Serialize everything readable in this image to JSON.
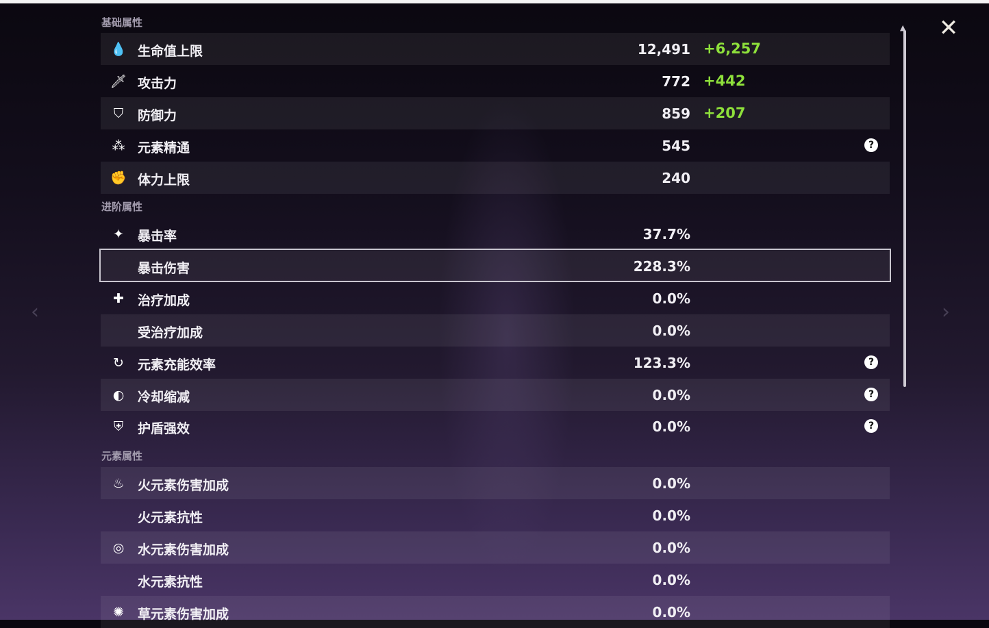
{
  "close_label": "✕",
  "sections": [
    {
      "title": "基础属性",
      "rows": [
        {
          "icon": "hp-drop-icon",
          "glyph": "💧",
          "label": "生命值上限",
          "value": "12,491",
          "bonus": "+6,257",
          "help": false
        },
        {
          "icon": "sword-icon",
          "glyph": "🗡",
          "label": "攻击力",
          "value": "772",
          "bonus": "+442",
          "help": false
        },
        {
          "icon": "shield-icon",
          "glyph": "⛉",
          "label": "防御力",
          "value": "859",
          "bonus": "+207",
          "help": false
        },
        {
          "icon": "elemental-mastery-icon",
          "glyph": "⁂",
          "label": "元素精通",
          "value": "545",
          "bonus": "",
          "help": true
        },
        {
          "icon": "stamina-icon",
          "glyph": "✊",
          "label": "体力上限",
          "value": "240",
          "bonus": "",
          "help": false
        }
      ]
    },
    {
      "title": "进阶属性",
      "rows": [
        {
          "icon": "crit-rate-icon",
          "glyph": "✦",
          "label": "暴击率",
          "value": "37.7%",
          "bonus": "",
          "help": false
        },
        {
          "icon": "",
          "glyph": "",
          "label": "暴击伤害",
          "value": "228.3%",
          "bonus": "",
          "help": false,
          "selected": true
        },
        {
          "icon": "healing-cross-icon",
          "glyph": "✚",
          "label": "治疗加成",
          "value": "0.0%",
          "bonus": "",
          "help": false
        },
        {
          "icon": "",
          "glyph": "",
          "label": "受治疗加成",
          "value": "0.0%",
          "bonus": "",
          "help": false
        },
        {
          "icon": "energy-recharge-icon",
          "glyph": "↻",
          "label": "元素充能效率",
          "value": "123.3%",
          "bonus": "",
          "help": true
        },
        {
          "icon": "cooldown-icon",
          "glyph": "◐",
          "label": "冷却缩减",
          "value": "0.0%",
          "bonus": "",
          "help": true
        },
        {
          "icon": "shield-strength-icon",
          "glyph": "⛨",
          "label": "护盾强效",
          "value": "0.0%",
          "bonus": "",
          "help": true
        }
      ]
    },
    {
      "title": "元素属性",
      "rows": [
        {
          "icon": "pyro-icon",
          "glyph": "♨",
          "label": "火元素伤害加成",
          "value": "0.0%",
          "bonus": "",
          "help": false
        },
        {
          "icon": "",
          "glyph": "",
          "label": "火元素抗性",
          "value": "0.0%",
          "bonus": "",
          "help": false
        },
        {
          "icon": "hydro-icon",
          "glyph": "◎",
          "label": "水元素伤害加成",
          "value": "0.0%",
          "bonus": "",
          "help": false
        },
        {
          "icon": "",
          "glyph": "",
          "label": "水元素抗性",
          "value": "0.0%",
          "bonus": "",
          "help": false
        },
        {
          "icon": "dendro-icon",
          "glyph": "✺",
          "label": "草元素伤害加成",
          "value": "0.0%",
          "bonus": "",
          "help": false
        }
      ]
    }
  ],
  "help_glyph": "?",
  "colors": {
    "bonus": "#8ee03b",
    "text": "#f1eff4",
    "section": "#a39cae"
  }
}
